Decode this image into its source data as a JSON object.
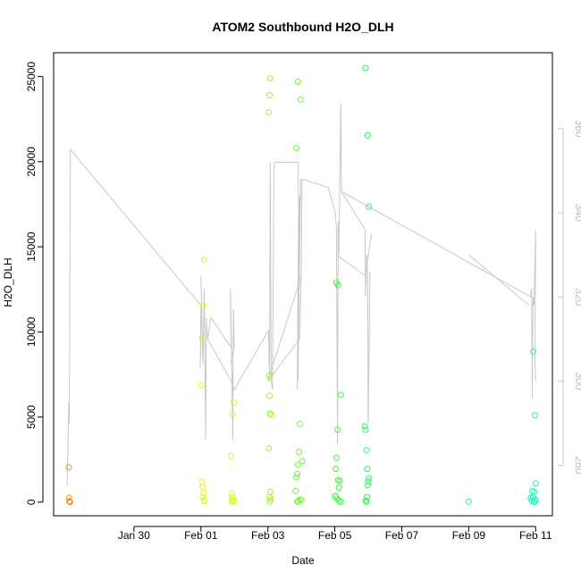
{
  "chart_data": {
    "type": "scatter",
    "title": "ATOM2 Southbound H2O_DLH",
    "xlabel": "Date",
    "ylabel": "H2O_DLH",
    "x_ticks": [
      "Jan 30",
      "Feb 01",
      "Feb 03",
      "Feb 05",
      "Feb 07",
      "Feb 09",
      "Feb 11"
    ],
    "x_tick_days": [
      30,
      32,
      34,
      36,
      38,
      40,
      42
    ],
    "xlim_days": [
      27.6,
      42.5
    ],
    "ylim": [
      -800,
      26400
    ],
    "y_ticks": [
      0,
      5000,
      10000,
      15000,
      20000,
      25000
    ],
    "y2lim": [
      268,
      378
    ],
    "y2_ticks": [
      280,
      300,
      320,
      340,
      360
    ],
    "y2_tick_labels": [
      "280",
      "300",
      "320",
      "340",
      "360"
    ],
    "grid": false,
    "legend": "none",
    "secondary_line_color": "#c8c8c8",
    "series": [
      {
        "color": "#f5922a",
        "points": [
          [
            28.05,
            2050
          ],
          [
            28.06,
            250
          ],
          [
            28.07,
            60
          ],
          [
            28.08,
            20
          ],
          [
            28.09,
            5
          ]
        ]
      },
      {
        "color": "#e9f21c",
        "points": [
          [
            32.02,
            6850
          ],
          [
            32.04,
            9650
          ],
          [
            32.07,
            11550
          ],
          [
            32.1,
            14250
          ],
          [
            32.03,
            1200
          ],
          [
            32.05,
            900
          ],
          [
            32.08,
            550
          ],
          [
            32.06,
            300
          ],
          [
            32.09,
            100
          ],
          [
            32.1,
            50
          ]
        ]
      },
      {
        "color": "#dcf515",
        "points": [
          [
            32.9,
            2700
          ],
          [
            32.95,
            5150
          ],
          [
            32.98,
            5850
          ],
          [
            32.92,
            500
          ],
          [
            32.94,
            300
          ],
          [
            32.96,
            150
          ],
          [
            32.98,
            50
          ],
          [
            32.93,
            20
          ]
        ]
      },
      {
        "color": "#9cf530",
        "points": [
          [
            34.02,
            22900
          ],
          [
            34.05,
            23900
          ],
          [
            34.07,
            24900
          ],
          [
            34.04,
            7450
          ],
          [
            34.05,
            6250
          ],
          [
            34.06,
            5200
          ],
          [
            34.1,
            5150
          ],
          [
            34.03,
            3150
          ],
          [
            34.07,
            600
          ],
          [
            34.05,
            300
          ],
          [
            34.09,
            150
          ],
          [
            34.06,
            30
          ]
        ]
      },
      {
        "color": "#73f53a",
        "points": [
          [
            34.85,
            20800
          ],
          [
            34.9,
            24700
          ],
          [
            34.98,
            23650
          ],
          [
            34.95,
            4600
          ],
          [
            35.02,
            2400
          ],
          [
            34.93,
            2950
          ],
          [
            34.9,
            2200
          ],
          [
            34.88,
            1650
          ],
          [
            34.85,
            1450
          ],
          [
            34.83,
            650
          ],
          [
            34.95,
            150
          ],
          [
            35.0,
            120
          ],
          [
            34.9,
            60
          ],
          [
            34.88,
            20
          ]
        ]
      },
      {
        "color": "#40f53a",
        "points": [
          [
            36.05,
            12900
          ],
          [
            36.1,
            12750
          ],
          [
            36.18,
            6300
          ],
          [
            36.08,
            4250
          ],
          [
            36.05,
            2600
          ],
          [
            36.03,
            1950
          ],
          [
            36.1,
            1300
          ],
          [
            36.15,
            1250
          ],
          [
            36.12,
            850
          ],
          [
            36.02,
            350
          ],
          [
            36.07,
            200
          ],
          [
            36.13,
            80
          ],
          [
            36.18,
            20
          ]
        ]
      },
      {
        "color": "#29f55a",
        "points": [
          [
            36.92,
            25500
          ],
          [
            36.98,
            21550
          ],
          [
            37.02,
            17350
          ],
          [
            36.9,
            4450
          ],
          [
            36.92,
            4250
          ],
          [
            36.95,
            3050
          ],
          [
            36.97,
            1950
          ],
          [
            37.02,
            1400
          ],
          [
            37.0,
            1200
          ],
          [
            36.98,
            1000
          ],
          [
            36.96,
            300
          ],
          [
            36.92,
            80
          ],
          [
            36.95,
            20
          ]
        ]
      },
      {
        "color": "#1ef5c2",
        "points": [
          [
            40.0,
            20
          ],
          [
            41.85,
            250
          ],
          [
            41.88,
            100
          ],
          [
            41.93,
            8850
          ],
          [
            41.98,
            5100
          ],
          [
            42.0,
            1100
          ],
          [
            41.9,
            650
          ],
          [
            41.96,
            600
          ],
          [
            41.92,
            300
          ],
          [
            41.98,
            150
          ],
          [
            42.0,
            50
          ],
          [
            41.95,
            10
          ]
        ]
      }
    ],
    "secondary_series": {
      "name_axis": "right",
      "segments": [
        [
          [
            28.0,
            275
          ],
          [
            28.02,
            280
          ],
          [
            28.05,
            295
          ],
          [
            28.07,
            290
          ],
          [
            28.1,
            355
          ]
        ],
        [
          [
            28.1,
            355
          ],
          [
            32.0,
            318
          ],
          [
            31.98,
            303
          ],
          [
            32.02,
            320
          ],
          [
            32.0,
            325
          ],
          [
            32.06,
            304
          ],
          [
            32.1,
            322
          ],
          [
            32.14,
            286
          ],
          [
            32.16,
            315
          ],
          [
            32.18,
            312
          ],
          [
            32.2,
            310
          ],
          [
            32.3,
            315
          ],
          [
            32.9,
            308
          ],
          [
            32.88,
            322
          ],
          [
            32.92,
            306
          ],
          [
            32.95,
            286
          ],
          [
            32.97,
            317
          ],
          [
            33.0,
            308
          ],
          [
            32.9,
            305
          ],
          [
            32.95,
            300
          ]
        ],
        [
          [
            32.2,
            310
          ],
          [
            32.9,
            300
          ],
          [
            33.0,
            298
          ],
          [
            34.02,
            312
          ],
          [
            34.05,
            300
          ],
          [
            34.07,
            352
          ],
          [
            34.1,
            300
          ],
          [
            34.14,
            298
          ],
          [
            34.18,
            350
          ],
          [
            34.2,
            352
          ],
          [
            34.9,
            352
          ],
          [
            34.92,
            342
          ],
          [
            34.88,
            298
          ],
          [
            34.95,
            344
          ],
          [
            34.9,
            300
          ],
          [
            34.98,
            348
          ],
          [
            35.02,
            348
          ],
          [
            35.0,
            326
          ],
          [
            34.95,
            310
          ],
          [
            34.0,
            300
          ],
          [
            35.0,
            325
          ]
        ],
        [
          [
            35.02,
            348
          ],
          [
            35.8,
            346
          ],
          [
            36.02,
            340
          ],
          [
            36.05,
            336
          ],
          [
            36.08,
            285
          ],
          [
            36.1,
            338
          ],
          [
            36.12,
            330
          ],
          [
            36.18,
            366
          ],
          [
            36.2,
            345
          ],
          [
            36.9,
            336
          ],
          [
            36.92,
            320
          ],
          [
            36.95,
            330
          ],
          [
            36.98,
            325
          ],
          [
            37.0,
            290
          ],
          [
            37.05,
            326
          ]
        ],
        [
          [
            36.05,
            330
          ],
          [
            36.92,
            325
          ],
          [
            37.0,
            330
          ],
          [
            37.1,
            335
          ]
        ],
        [
          [
            36.2,
            345
          ],
          [
            41.85,
            320
          ],
          [
            41.88,
            322
          ],
          [
            41.9,
            296
          ],
          [
            41.92,
            320
          ],
          [
            41.95,
            318
          ],
          [
            42.0,
            336
          ],
          [
            41.98,
            305
          ],
          [
            42.0,
            300
          ]
        ],
        [
          [
            40.0,
            330
          ],
          [
            41.8,
            318
          ]
        ]
      ]
    }
  }
}
